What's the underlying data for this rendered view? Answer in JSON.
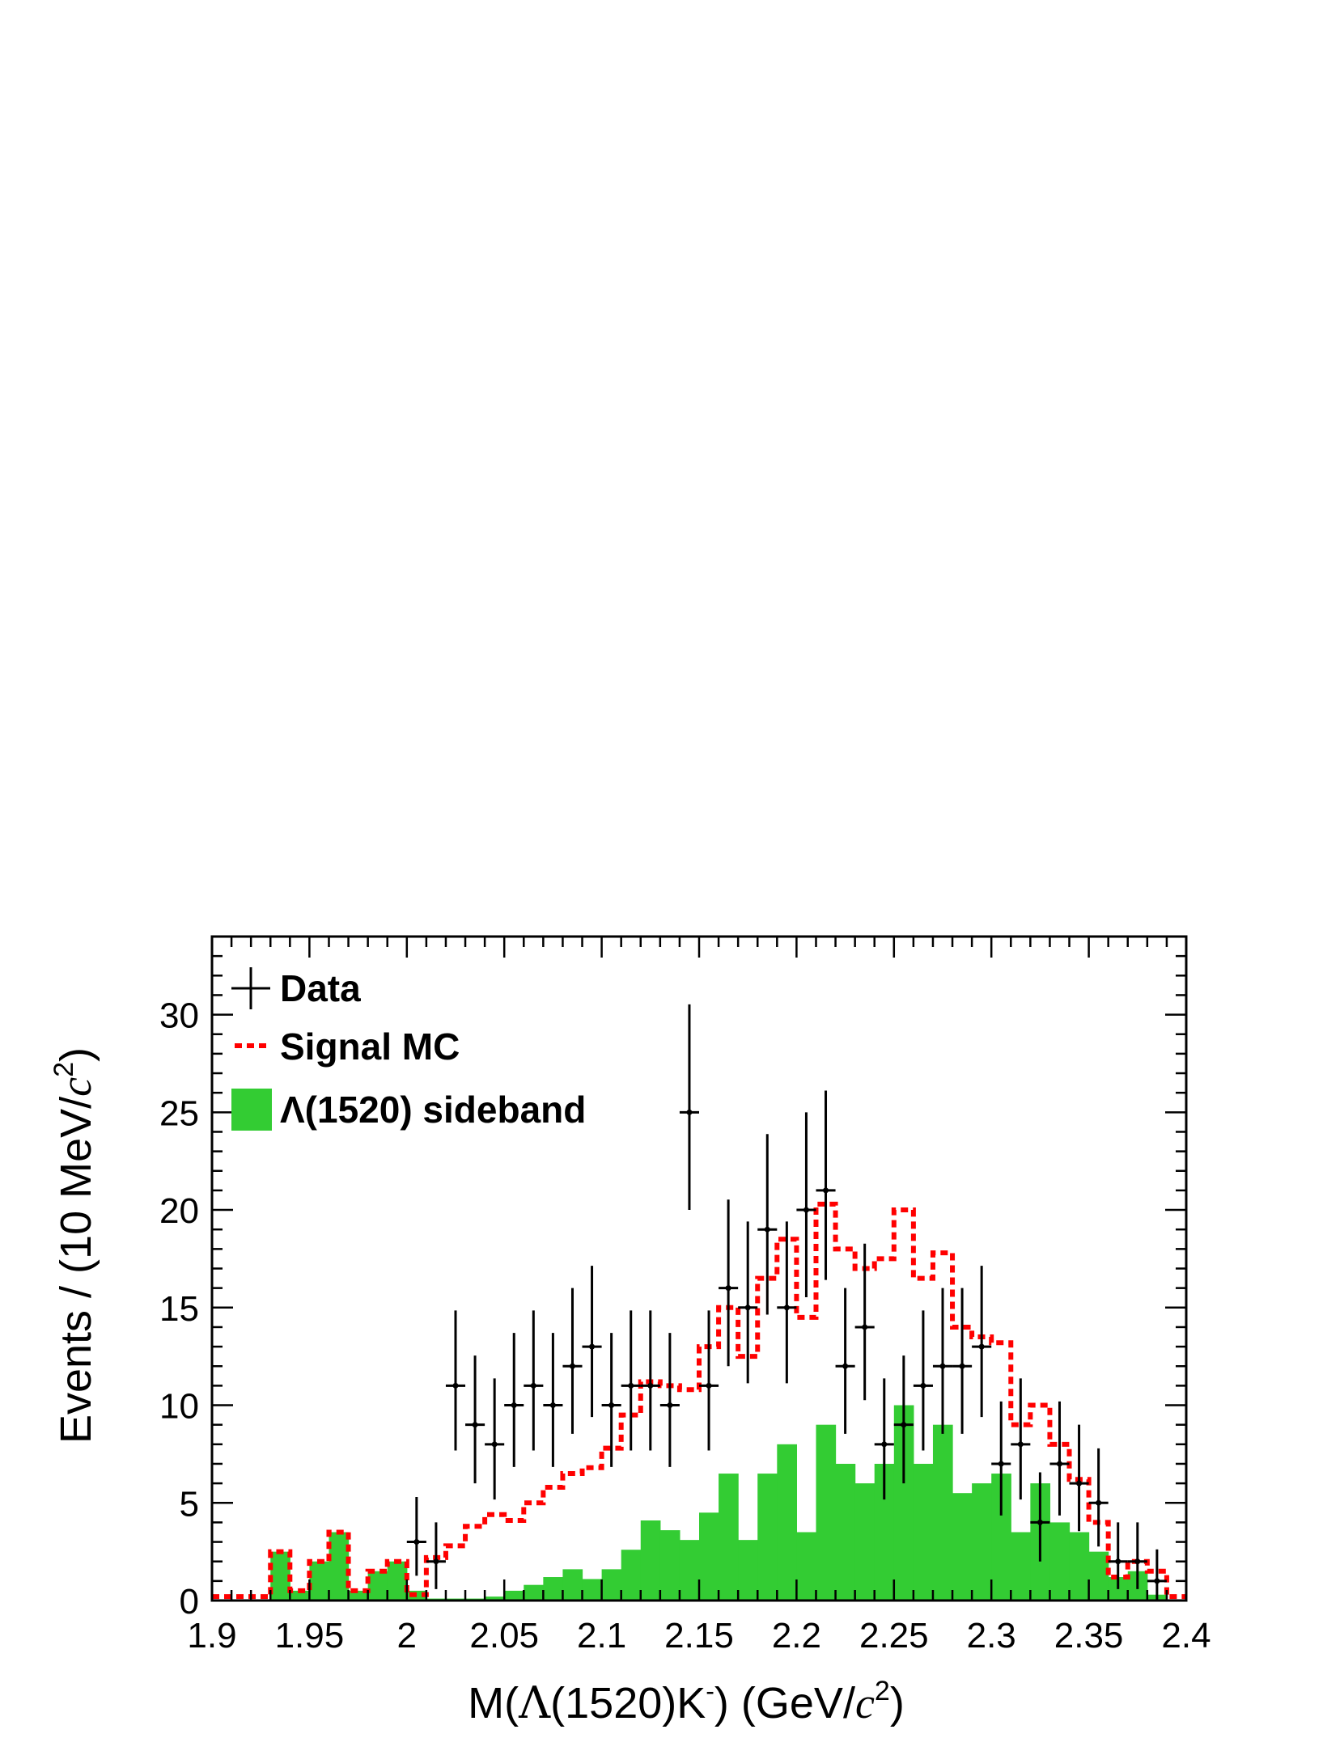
{
  "chart_data": {
    "type": "bar",
    "xlabel": "M(Λ(1520)K-) (GeV/c2)",
    "xlabel_parts": {
      "pre": "M(",
      "greek": "Λ",
      "mid": "(1520)K",
      "sup1": "-",
      "post": ") (GeV/",
      "c": "c",
      "sup2": "2",
      "end": ")"
    },
    "ylabel": "Events / (10 MeV/c2)",
    "ylabel_parts": {
      "pre": "Events / (10 MeV/",
      "c": "c",
      "sup": "2",
      "end": ")"
    },
    "xlim": [
      1.9,
      2.4
    ],
    "ylim": [
      0,
      34
    ],
    "x_ticks": [
      1.9,
      1.95,
      2.0,
      2.05,
      2.1,
      2.15,
      2.2,
      2.25,
      2.3,
      2.35,
      2.4
    ],
    "x_tick_labels": [
      "1.9",
      "1.95",
      "2",
      "2.05",
      "2.1",
      "2.15",
      "2.2",
      "2.25",
      "2.3",
      "2.35",
      "2.4"
    ],
    "y_ticks": [
      0,
      5,
      10,
      15,
      20,
      25,
      30
    ],
    "y_tick_labels": [
      "0",
      "5",
      "10",
      "15",
      "20",
      "25",
      "30"
    ],
    "bin_edges_start": 1.9,
    "bin_width": 0.01,
    "legend_position": "top-left",
    "colors": {
      "data": "#000000",
      "signal_mc": "#ff0000",
      "sideband": "#33cc33"
    },
    "series": [
      {
        "name": "Data",
        "style": "points",
        "x": [
          2.005,
          2.015,
          2.025,
          2.035,
          2.045,
          2.055,
          2.065,
          2.075,
          2.085,
          2.095,
          2.105,
          2.115,
          2.125,
          2.135,
          2.145,
          2.155,
          2.165,
          2.175,
          2.185,
          2.195,
          2.205,
          2.215,
          2.225,
          2.235,
          2.245,
          2.255,
          2.265,
          2.275,
          2.285,
          2.295,
          2.305,
          2.315,
          2.325,
          2.335,
          2.345,
          2.355,
          2.365,
          2.375,
          2.385
        ],
        "y": [
          3,
          2,
          11,
          9,
          8,
          10,
          11,
          10,
          12,
          13,
          10,
          11,
          11,
          10,
          25,
          11,
          16,
          15,
          19,
          15,
          20,
          21,
          12,
          14,
          8,
          9,
          11,
          12,
          12,
          13,
          7,
          8,
          4,
          7,
          6,
          5,
          2,
          2,
          1
        ]
      },
      {
        "name": "Signal MC",
        "style": "dashed-step",
        "values": [
          0.2,
          0.2,
          0.2,
          2.5,
          0.5,
          2,
          3.5,
          0.5,
          1.5,
          2,
          0.3,
          2.2,
          2.8,
          3.8,
          4.4,
          4.1,
          5.0,
          5.8,
          6.5,
          6.8,
          7.8,
          9.5,
          11.2,
          11.0,
          10.8,
          13.0,
          15.0,
          12.5,
          16.5,
          18.5,
          14.5,
          20.3,
          18.0,
          17.0,
          17.5,
          20.0,
          16.5,
          17.8,
          14.0,
          13.5,
          13.2,
          9.0,
          10.0,
          8.0,
          6.2,
          4.0,
          1.2,
          2.0,
          1.5,
          0.2
        ],
        "visible_bins": 50
      },
      {
        "name": "Λ(1520) sideband",
        "style": "filled-hist",
        "values": [
          0,
          0,
          0,
          2.5,
          0.5,
          2,
          3.5,
          0.5,
          1.5,
          2,
          0.5,
          0.1,
          0.1,
          0.1,
          0.2,
          0.5,
          0.8,
          1.2,
          1.6,
          1.1,
          1.6,
          2.6,
          4.1,
          3.6,
          3.1,
          4.5,
          6.5,
          3.1,
          6.5,
          8.0,
          3.5,
          9.0,
          7.0,
          6.0,
          7.0,
          10.0,
          7.0,
          9.0,
          5.5,
          6.0,
          6.5,
          3.5,
          6.0,
          4.0,
          3.5,
          2.5,
          1.2,
          1.5,
          0.3,
          0
        ]
      }
    ]
  }
}
